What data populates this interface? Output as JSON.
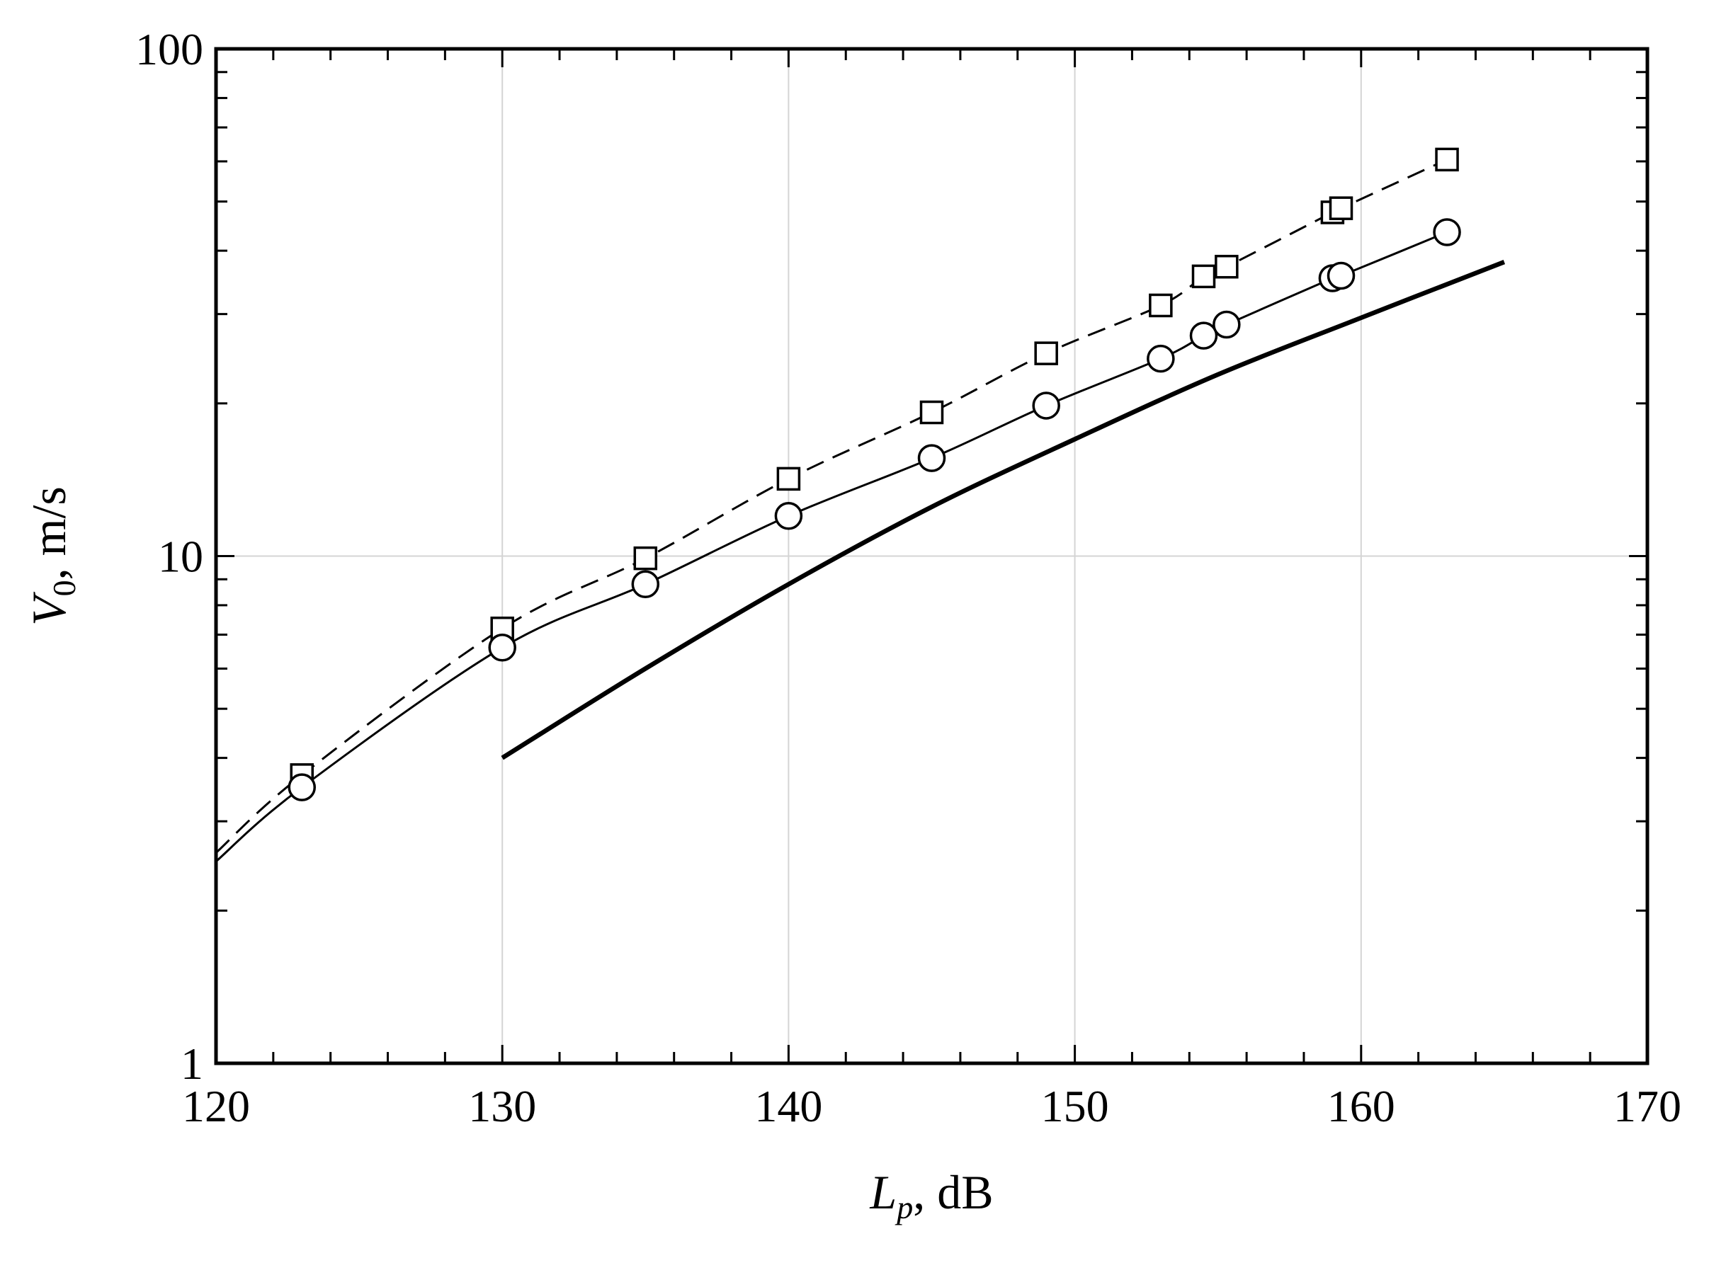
{
  "chart_data": {
    "type": "line",
    "title": "",
    "xlabel": {
      "main": "L",
      "sub": "p",
      "unit": ", dB"
    },
    "ylabel": {
      "main": "V",
      "sub": "0",
      "unit": ", m/s"
    },
    "xlim": [
      120,
      170
    ],
    "ylim": [
      1,
      100
    ],
    "yscale": "log",
    "grid": true,
    "legend": "none",
    "x_ticks": [
      120,
      130,
      140,
      150,
      160,
      170
    ],
    "x_tick_labels": [
      "120",
      "130",
      "140",
      "150",
      "160",
      "170"
    ],
    "y_ticks": [
      1,
      10,
      100
    ],
    "y_tick_labels": [
      "1",
      "10",
      "100"
    ],
    "series": [
      {
        "style": "dashed-squares",
        "x": [
          123,
          130,
          135,
          140,
          145,
          149,
          153,
          154.5,
          155.3,
          159,
          159.3,
          163
        ],
        "y": [
          3.7,
          7.2,
          9.9,
          14.2,
          19.2,
          25.1,
          31.2,
          35.6,
          37.2,
          47.6,
          48.5,
          60.5
        ]
      },
      {
        "style": "solid-circles",
        "x": [
          123,
          130,
          135,
          140,
          145,
          149,
          153,
          154.5,
          155.3,
          159,
          159.3,
          163
        ],
        "y": [
          3.5,
          6.6,
          8.8,
          12,
          15.6,
          19.8,
          24.5,
          27.2,
          28.6,
          35.3,
          35.7,
          43.5
        ]
      },
      {
        "style": "thick-solid",
        "x": [
          130,
          135,
          140,
          145,
          150,
          155,
          160,
          165
        ],
        "y": [
          4.0,
          6.0,
          8.8,
          12.5,
          17.0,
          22.8,
          29.5,
          38.0
        ]
      }
    ],
    "left_extension": {
      "x": [
        120,
        123
      ],
      "dashed_y": [
        2.6,
        3.7
      ],
      "solid_y": [
        2.5,
        3.5
      ]
    }
  }
}
